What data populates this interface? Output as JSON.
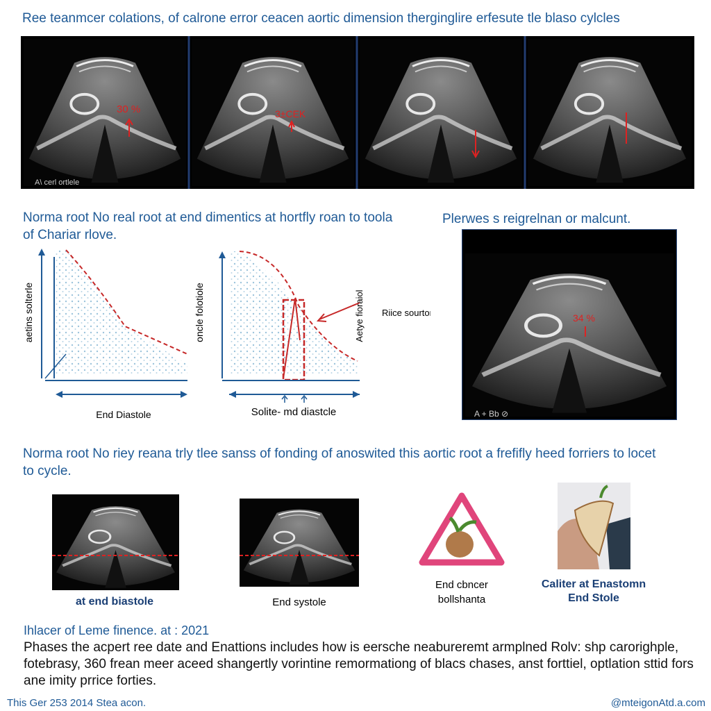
{
  "header": {
    "title": "Ree teanmcer colations, of calrone error ceacen aortic dimension therginglire erfesute tle blaso cylcles"
  },
  "top_strip": {
    "corner_label": "A\\ cerl ortlele",
    "panel_1_note": "30 %",
    "panel_2_note": "3±CEK"
  },
  "section_2": {
    "heading": "Norma root No real root at end dimentics at hortfly roan to toola of Chariar rlove.",
    "graph_1": {
      "y_label": "aetins solterle",
      "x_label": "End Diastole"
    },
    "graph_2": {
      "y_label": "oncle folotiole",
      "side_label": "Aetye fioraiol",
      "callout": "Riice sourtor",
      "x_label": "Solite- md diastcle"
    },
    "image_heading": "Plerwes s reigrelnan or malcunt.",
    "image_note": "34 %",
    "image_corner": "A + Bb ⊘"
  },
  "section_3": {
    "heading": "Norma root No riey reana trly tlee sanss of fonding of anoswited this aortic root a frefifly heed forriers to locet to cycle.",
    "captions": [
      "at end biastole",
      "End systole",
      "End cbncer bollshanta",
      "Caliter at Enastomn End Stole"
    ]
  },
  "footer": {
    "title": "Ihlacer of Leme finence. at : 2021",
    "paragraph": "Phases the acpert ree date and Enattions includes how is eersche neabureremt armplned Rolv: shp carorighple, fotebrasy, 360 frean meer aceed shangertly vorintine remormationg of blacs chases, anst forttiel, optlation sttid fors ane imity prrice forties.",
    "left_note": "This Ger 253 2014 Stea acon.",
    "right_note": "@mteigonAtd.a.com"
  }
}
